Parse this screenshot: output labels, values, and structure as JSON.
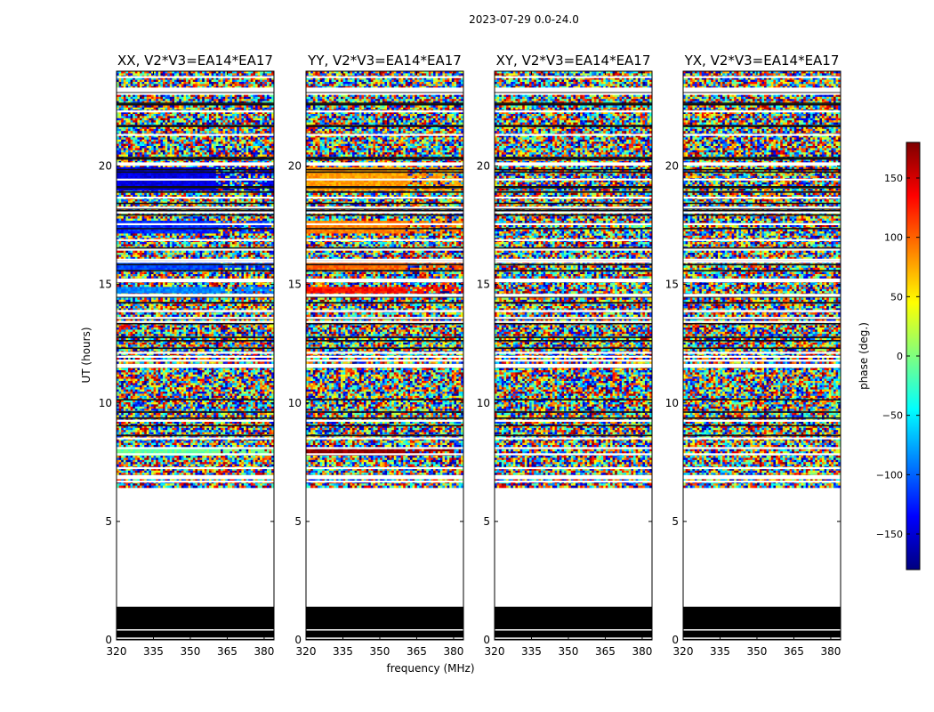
{
  "figure": {
    "suptitle": "2023-07-29 0.0-24.0",
    "xlabel": "frequency (MHz)",
    "ylabel": "UT (hours)"
  },
  "colorbar": {
    "label": "phase (deg.)",
    "range": [
      -180,
      180
    ],
    "ticks": [
      -150,
      -100,
      -50,
      0,
      50,
      100,
      150
    ],
    "tick_labels": [
      "−150",
      "−100",
      "−50",
      "0",
      "50",
      "100",
      "150"
    ],
    "colormap": "jet",
    "colors": [
      "#00007f",
      "#0000ff",
      "#007fff",
      "#00ffff",
      "#7fff7f",
      "#ffff00",
      "#ff7f00",
      "#ff0000",
      "#7f0000"
    ]
  },
  "chart_data": {
    "type": "heatmap",
    "x_range": [
      320,
      384
    ],
    "y_range": [
      0,
      24
    ],
    "x_ticks": [
      320,
      335,
      350,
      365,
      380
    ],
    "y_ticks": [
      0,
      5,
      10,
      15,
      20
    ],
    "value_range": [
      -180,
      180
    ],
    "empty_ut_range": [
      1.4,
      6.5
    ],
    "flagged_ut_range": [
      0,
      1.4
    ],
    "panels": [
      {
        "title": "XX, V2*V3=EA14*EA17",
        "coherent_bands": [
          {
            "ut": [
              19.0,
              20.0
            ],
            "phase": -145
          },
          {
            "ut": [
              17.2,
              17.7
            ],
            "phase": -120
          },
          {
            "ut": [
              15.7,
              16.0
            ],
            "phase": -110
          },
          {
            "ut": [
              14.7,
              14.9
            ],
            "phase": -90
          },
          {
            "ut": [
              7.8,
              8.2
            ],
            "phase": -10
          }
        ]
      },
      {
        "title": "YY, V2*V3=EA14*EA17",
        "coherent_bands": [
          {
            "ut": [
              19.0,
              20.0
            ],
            "phase": 80
          },
          {
            "ut": [
              17.2,
              17.7
            ],
            "phase": 90
          },
          {
            "ut": [
              15.7,
              16.0
            ],
            "phase": 100
          },
          {
            "ut": [
              14.7,
              14.9
            ],
            "phase": 130
          },
          {
            "ut": [
              7.8,
              8.1
            ],
            "phase": 175
          }
        ]
      },
      {
        "title": "XY, V2*V3=EA14*EA17",
        "coherent_bands": []
      },
      {
        "title": "YX, V2*V3=EA14*EA17",
        "coherent_bands": []
      }
    ]
  }
}
